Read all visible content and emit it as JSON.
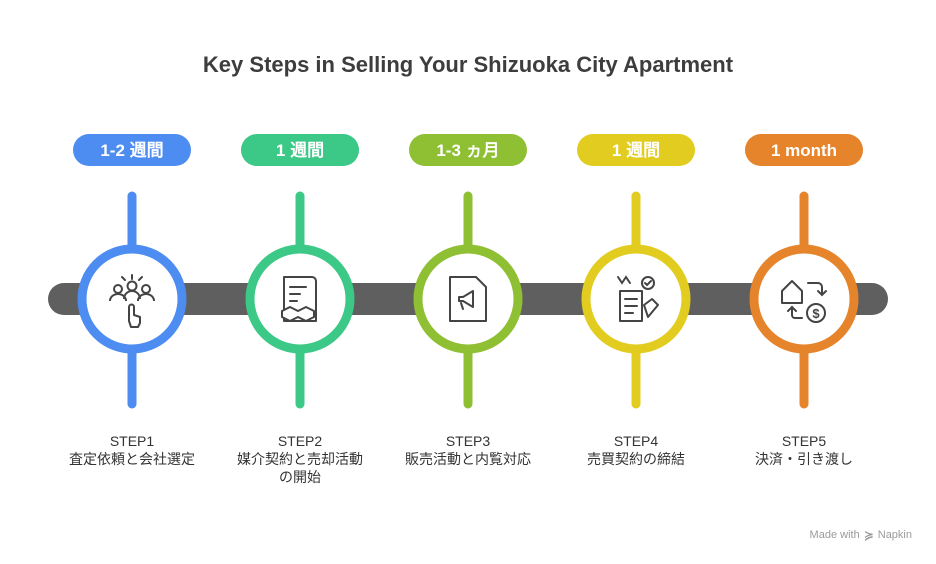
{
  "title": "Key Steps in Selling Your Shizuoka City Apartment",
  "steps": [
    {
      "duration": "1-2 週間",
      "step": "STEP1",
      "desc_lines": [
        "査定依頼と会社選定"
      ],
      "color": "#4d8cf0",
      "icon": "people-pointer-icon"
    },
    {
      "duration": "1 週間",
      "step": "STEP2",
      "desc_lines": [
        "媒介契約と売却活動",
        "の開始"
      ],
      "color": "#3cc887",
      "icon": "contract-handshake-icon"
    },
    {
      "duration": "1-3 ヵ月",
      "step": "STEP3",
      "desc_lines": [
        "販売活動と内覧対応"
      ],
      "color": "#8fbf32",
      "icon": "megaphone-document-icon"
    },
    {
      "duration": "1 週間",
      "step": "STEP4",
      "desc_lines": [
        "売買契約の締結"
      ],
      "color": "#e2cc1f",
      "icon": "signing-document-icon"
    },
    {
      "duration": "1 month",
      "step": "STEP5",
      "desc_lines": [
        "決済・引き渡し"
      ],
      "color": "#e6842c",
      "icon": "house-exchange-money-icon"
    }
  ],
  "footer": {
    "made_with": "Made with",
    "brand": "Napkin"
  }
}
